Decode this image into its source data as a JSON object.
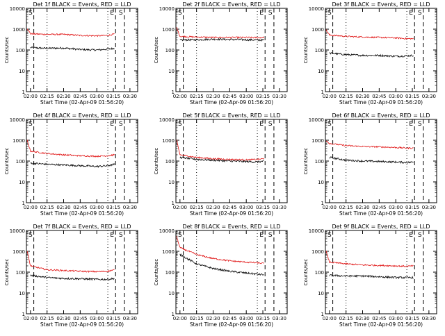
{
  "colors": {
    "events": "#000000",
    "lld": "#e01010",
    "axis": "#000000",
    "background": "#ffffff"
  },
  "common": {
    "ylabel": "Counts/sec",
    "xlabel": "Start Time (02-Apr-09 01:56:20)",
    "x_ticks": [
      "02:00",
      "02:15",
      "02:30",
      "02:45",
      "03:00",
      "03:15",
      "03:30"
    ],
    "y_ticks": [
      "1",
      "10",
      "100",
      "1000",
      "10000"
    ],
    "marker_E": "E",
    "marker_S": "S"
  },
  "chart_data": [
    {
      "type": "line",
      "title": "Det 1f BLACK = Events, RED = LLD",
      "x_range": [
        "01:56:20",
        "03:37"
      ],
      "ylim": [
        1,
        10000
      ],
      "y_scale": "log",
      "events_dotted_times": [
        "02:15",
        "03:10"
      ],
      "dashed_times": [
        "02:03",
        "03:17",
        "03:25"
      ],
      "series": [
        {
          "legend": "Events",
          "color": "black",
          "x": [
            "02:00",
            "02:15",
            "02:30",
            "02:45",
            "03:00",
            "03:10",
            "03:16"
          ],
          "y": [
            130,
            120,
            125,
            105,
            100,
            110,
            120
          ]
        },
        {
          "legend": "LLD",
          "color": "red",
          "x": [
            "01:57",
            "02:00",
            "02:15",
            "02:30",
            "02:45",
            "03:00",
            "03:10",
            "03:16"
          ],
          "y": [
            1100,
            600,
            560,
            560,
            500,
            480,
            500,
            580
          ]
        }
      ]
    },
    {
      "type": "line",
      "title": "Det 2f BLACK = Events, RED = LLD",
      "x_range": [
        "01:56:20",
        "03:37"
      ],
      "ylim": [
        1,
        10000
      ],
      "y_scale": "log",
      "events_dotted_times": [
        "02:15",
        "03:10"
      ],
      "dashed_times": [
        "02:03",
        "03:17",
        "03:25"
      ],
      "series": [
        {
          "legend": "Events",
          "color": "black",
          "x": [
            "02:00",
            "02:15",
            "02:30",
            "02:45",
            "03:00",
            "03:10",
            "03:16"
          ],
          "y": [
            300,
            310,
            330,
            320,
            310,
            300,
            300
          ]
        },
        {
          "legend": "LLD",
          "color": "red",
          "x": [
            "01:57",
            "02:00",
            "02:15",
            "02:30",
            "02:45",
            "03:00",
            "03:10",
            "03:16"
          ],
          "y": [
            1200,
            450,
            420,
            400,
            400,
            400,
            390,
            400
          ]
        }
      ]
    },
    {
      "type": "line",
      "title": "Det 3f BLACK = Events, RED = LLD",
      "x_range": [
        "01:56:20",
        "03:37"
      ],
      "ylim": [
        1,
        10000
      ],
      "y_scale": "log",
      "events_dotted_times": [
        "02:15",
        "03:10"
      ],
      "dashed_times": [
        "02:03",
        "03:17",
        "03:25"
      ],
      "series": [
        {
          "legend": "Events",
          "color": "black",
          "x": [
            "02:00",
            "02:15",
            "02:30",
            "02:45",
            "03:00",
            "03:10",
            "03:16"
          ],
          "y": [
            70,
            60,
            55,
            55,
            50,
            52,
            55
          ]
        },
        {
          "legend": "LLD",
          "color": "red",
          "x": [
            "01:57",
            "02:00",
            "02:15",
            "02:30",
            "02:45",
            "03:00",
            "03:10",
            "03:16"
          ],
          "y": [
            900,
            520,
            450,
            420,
            400,
            380,
            350,
            350
          ]
        }
      ]
    },
    {
      "type": "line",
      "title": "Det 4f BLACK = Events, RED = LLD",
      "x_range": [
        "01:56:20",
        "03:37"
      ],
      "ylim": [
        1,
        10000
      ],
      "y_scale": "log",
      "events_dotted_times": [
        "02:15",
        "03:10"
      ],
      "dashed_times": [
        "02:03",
        "03:17",
        "03:25"
      ],
      "series": [
        {
          "legend": "Events",
          "color": "black",
          "x": [
            "02:00",
            "02:15",
            "02:30",
            "02:45",
            "03:00",
            "03:10",
            "03:16"
          ],
          "y": [
            80,
            70,
            65,
            60,
            55,
            60,
            70
          ]
        },
        {
          "legend": "LLD",
          "color": "red",
          "x": [
            "01:57",
            "02:00",
            "02:15",
            "02:30",
            "02:45",
            "03:00",
            "03:10",
            "03:16"
          ],
          "y": [
            1000,
            300,
            230,
            200,
            180,
            170,
            180,
            200
          ]
        }
      ]
    },
    {
      "type": "line",
      "title": "Det 5f BLACK = Events, RED = LLD",
      "x_range": [
        "01:56:20",
        "03:37"
      ],
      "ylim": [
        1,
        10000
      ],
      "y_scale": "log",
      "events_dotted_times": [
        "02:15",
        "03:10"
      ],
      "dashed_times": [
        "02:03",
        "03:17",
        "03:25"
      ],
      "series": [
        {
          "legend": "Events",
          "color": "black",
          "x": [
            "02:00",
            "02:15",
            "02:30",
            "02:45",
            "03:00",
            "03:10",
            "03:16"
          ],
          "y": [
            150,
            120,
            110,
            100,
            95,
            90,
            100
          ]
        },
        {
          "legend": "LLD",
          "color": "red",
          "x": [
            "01:57",
            "02:00",
            "02:15",
            "02:30",
            "02:45",
            "03:00",
            "03:10",
            "03:16"
          ],
          "y": [
            1000,
            200,
            150,
            130,
            120,
            115,
            120,
            130
          ]
        }
      ]
    },
    {
      "type": "line",
      "title": "Det 6f BLACK = Events, RED = LLD",
      "x_range": [
        "01:56:20",
        "03:37"
      ],
      "ylim": [
        1,
        10000
      ],
      "y_scale": "log",
      "events_dotted_times": [
        "02:15",
        "03:10"
      ],
      "dashed_times": [
        "02:03",
        "03:17",
        "03:25"
      ],
      "series": [
        {
          "legend": "Events",
          "color": "black",
          "x": [
            "02:00",
            "02:15",
            "02:30",
            "02:45",
            "03:00",
            "03:10",
            "03:16"
          ],
          "y": [
            150,
            110,
            100,
            95,
            90,
            85,
            90
          ]
        },
        {
          "legend": "LLD",
          "color": "red",
          "x": [
            "01:57",
            "02:00",
            "02:15",
            "02:30",
            "02:45",
            "03:00",
            "03:10",
            "03:16"
          ],
          "y": [
            1000,
            700,
            550,
            500,
            480,
            450,
            420,
            420
          ]
        }
      ]
    },
    {
      "type": "line",
      "title": "Det 7f BLACK = Events, RED = LLD",
      "x_range": [
        "01:56:20",
        "03:37"
      ],
      "ylim": [
        1,
        10000
      ],
      "y_scale": "log",
      "events_dotted_times": [
        "02:15",
        "03:10"
      ],
      "dashed_times": [
        "02:03",
        "03:17",
        "03:25"
      ],
      "series": [
        {
          "legend": "Events",
          "color": "black",
          "x": [
            "02:00",
            "02:15",
            "02:30",
            "02:45",
            "03:00",
            "03:10",
            "03:16"
          ],
          "y": [
            70,
            55,
            50,
            48,
            45,
            45,
            50
          ]
        },
        {
          "legend": "LLD",
          "color": "red",
          "x": [
            "01:57",
            "02:00",
            "02:15",
            "02:30",
            "02:45",
            "03:00",
            "03:10",
            "03:16"
          ],
          "y": [
            1000,
            200,
            130,
            120,
            110,
            105,
            110,
            130
          ]
        }
      ]
    },
    {
      "type": "line",
      "title": "Det 8f BLACK = Events, RED = LLD",
      "x_range": [
        "01:56:20",
        "03:37"
      ],
      "ylim": [
        1,
        10000
      ],
      "y_scale": "log",
      "events_dotted_times": [
        "02:15",
        "03:10"
      ],
      "dashed_times": [
        "02:03",
        "03:17",
        "03:25"
      ],
      "series": [
        {
          "legend": "Events",
          "color": "black",
          "x": [
            "02:00",
            "02:15",
            "02:30",
            "02:45",
            "03:00",
            "03:10",
            "03:16"
          ],
          "y": [
            700,
            250,
            150,
            110,
            90,
            80,
            75
          ]
        },
        {
          "legend": "LLD",
          "color": "red",
          "x": [
            "01:57",
            "02:00",
            "02:15",
            "02:30",
            "02:45",
            "03:00",
            "03:10",
            "03:16"
          ],
          "y": [
            5000,
            1500,
            700,
            450,
            350,
            300,
            280,
            260
          ]
        }
      ]
    },
    {
      "type": "line",
      "title": "Det 9f BLACK = Events, RED = LLD",
      "x_range": [
        "01:56:20",
        "03:37"
      ],
      "ylim": [
        1,
        10000
      ],
      "y_scale": "log",
      "events_dotted_times": [
        "02:15",
        "03:10"
      ],
      "dashed_times": [
        "02:03",
        "03:17",
        "03:25"
      ],
      "series": [
        {
          "legend": "Events",
          "color": "black",
          "x": [
            "02:00",
            "02:15",
            "02:30",
            "02:45",
            "03:00",
            "03:10",
            "03:16"
          ],
          "y": [
            70,
            65,
            65,
            60,
            55,
            55,
            55
          ]
        },
        {
          "legend": "LLD",
          "color": "red",
          "x": [
            "01:57",
            "02:00",
            "02:15",
            "02:30",
            "02:45",
            "03:00",
            "03:10",
            "03:16"
          ],
          "y": [
            1000,
            300,
            250,
            220,
            210,
            200,
            190,
            200
          ]
        }
      ]
    }
  ]
}
